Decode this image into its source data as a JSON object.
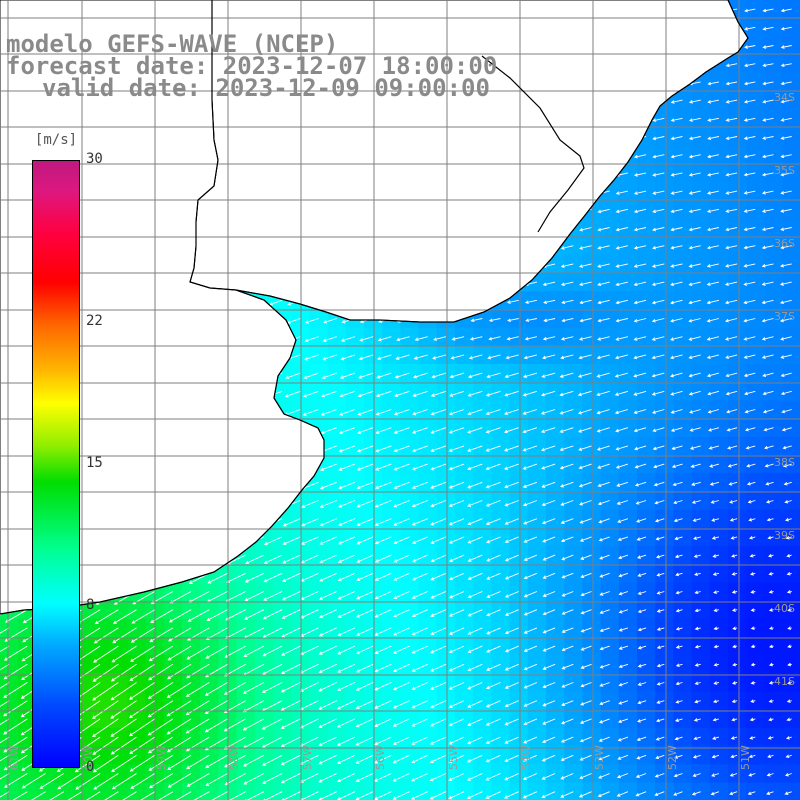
{
  "title": {
    "line1": "modelo GEFS-WAVE (NCEP)",
    "line2": "forecast date: 2023-12-07 18:00:00",
    "line3": "valid date: 2023-12-09 09:00:00"
  },
  "colorbar": {
    "unit": "[m/s]",
    "ticks": [
      {
        "label": "30",
        "value": 30
      },
      {
        "label": "22",
        "value": 22
      },
      {
        "label": "15",
        "value": 15
      },
      {
        "label": "8",
        "value": 8
      },
      {
        "label": "0",
        "value": 0
      }
    ],
    "min": 0,
    "max": 30
  },
  "map": {
    "lat_labels": [
      "34S",
      "35S",
      "36S",
      "37S",
      "38S",
      "39S",
      "40S",
      "41S"
    ],
    "lon_labels": [
      "61W",
      "60W",
      "59W",
      "58W",
      "57W",
      "56W",
      "55W",
      "54W",
      "53W",
      "52W",
      "51W"
    ],
    "land_color": "#ffffff",
    "grid_color": "#808080",
    "wind_field": "wind speed shading with white direction arrows; strongest (green, ~11-14 m/s) in the southwest, weakest (deep blue, ~1-3 m/s) in the southeast"
  }
}
